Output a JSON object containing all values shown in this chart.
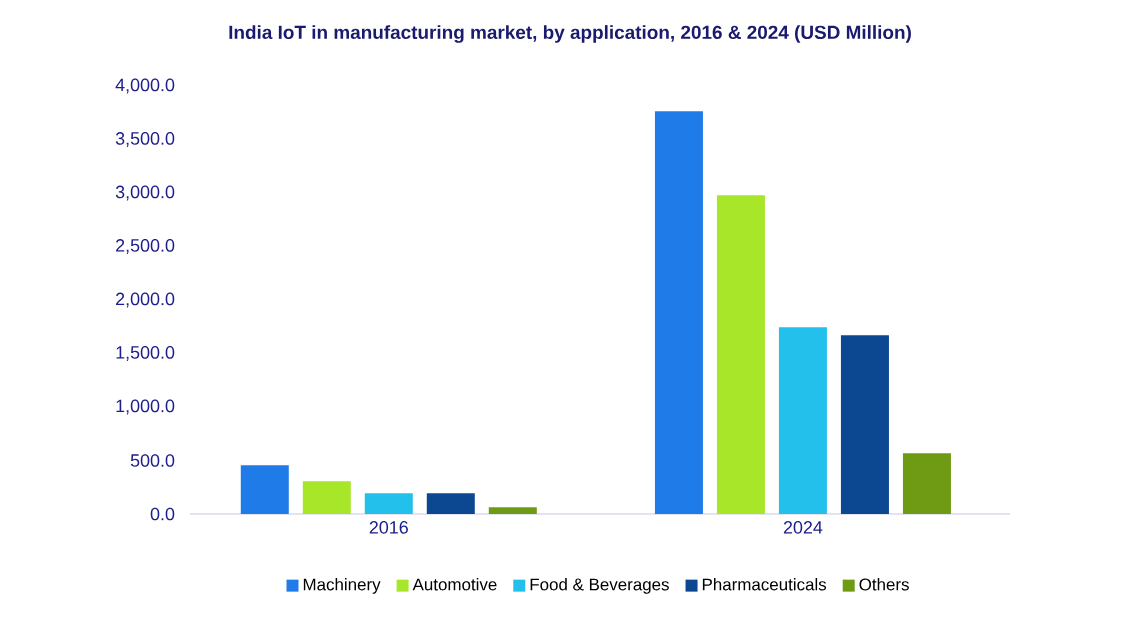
{
  "chart_data": {
    "type": "bar",
    "title": "India IoT in manufacturing market, by application, 2016 & 2024 (USD Million)",
    "categories": [
      "2016",
      "2024"
    ],
    "series": [
      {
        "name": "Machinery",
        "color": "#1f7be8",
        "values": [
          455,
          3763
        ]
      },
      {
        "name": "Automotive",
        "color": "#a8e62a",
        "values": [
          305,
          2978
        ]
      },
      {
        "name": "Food & Beverages",
        "color": "#23c0ec",
        "values": [
          193,
          1745
        ]
      },
      {
        "name": "Pharmaceuticals",
        "color": "#0c4791",
        "values": [
          193,
          1670
        ]
      },
      {
        "name": "Others",
        "color": "#6e9a14",
        "values": [
          62,
          567
        ]
      }
    ],
    "ylim": [
      0,
      4000
    ],
    "yticks": [
      {
        "value": 0,
        "label": "0.0"
      },
      {
        "value": 500,
        "label": "500.0"
      },
      {
        "value": 1000,
        "label": "1,000.0"
      },
      {
        "value": 1500,
        "label": "1,500.0"
      },
      {
        "value": 2000,
        "label": "2,000.0"
      },
      {
        "value": 2500,
        "label": "2,500.0"
      },
      {
        "value": 3000,
        "label": "3,000.0"
      },
      {
        "value": 3500,
        "label": "3,500.0"
      },
      {
        "value": 4000,
        "label": "4,000.0"
      }
    ],
    "grid": false,
    "legend": "bottom"
  }
}
